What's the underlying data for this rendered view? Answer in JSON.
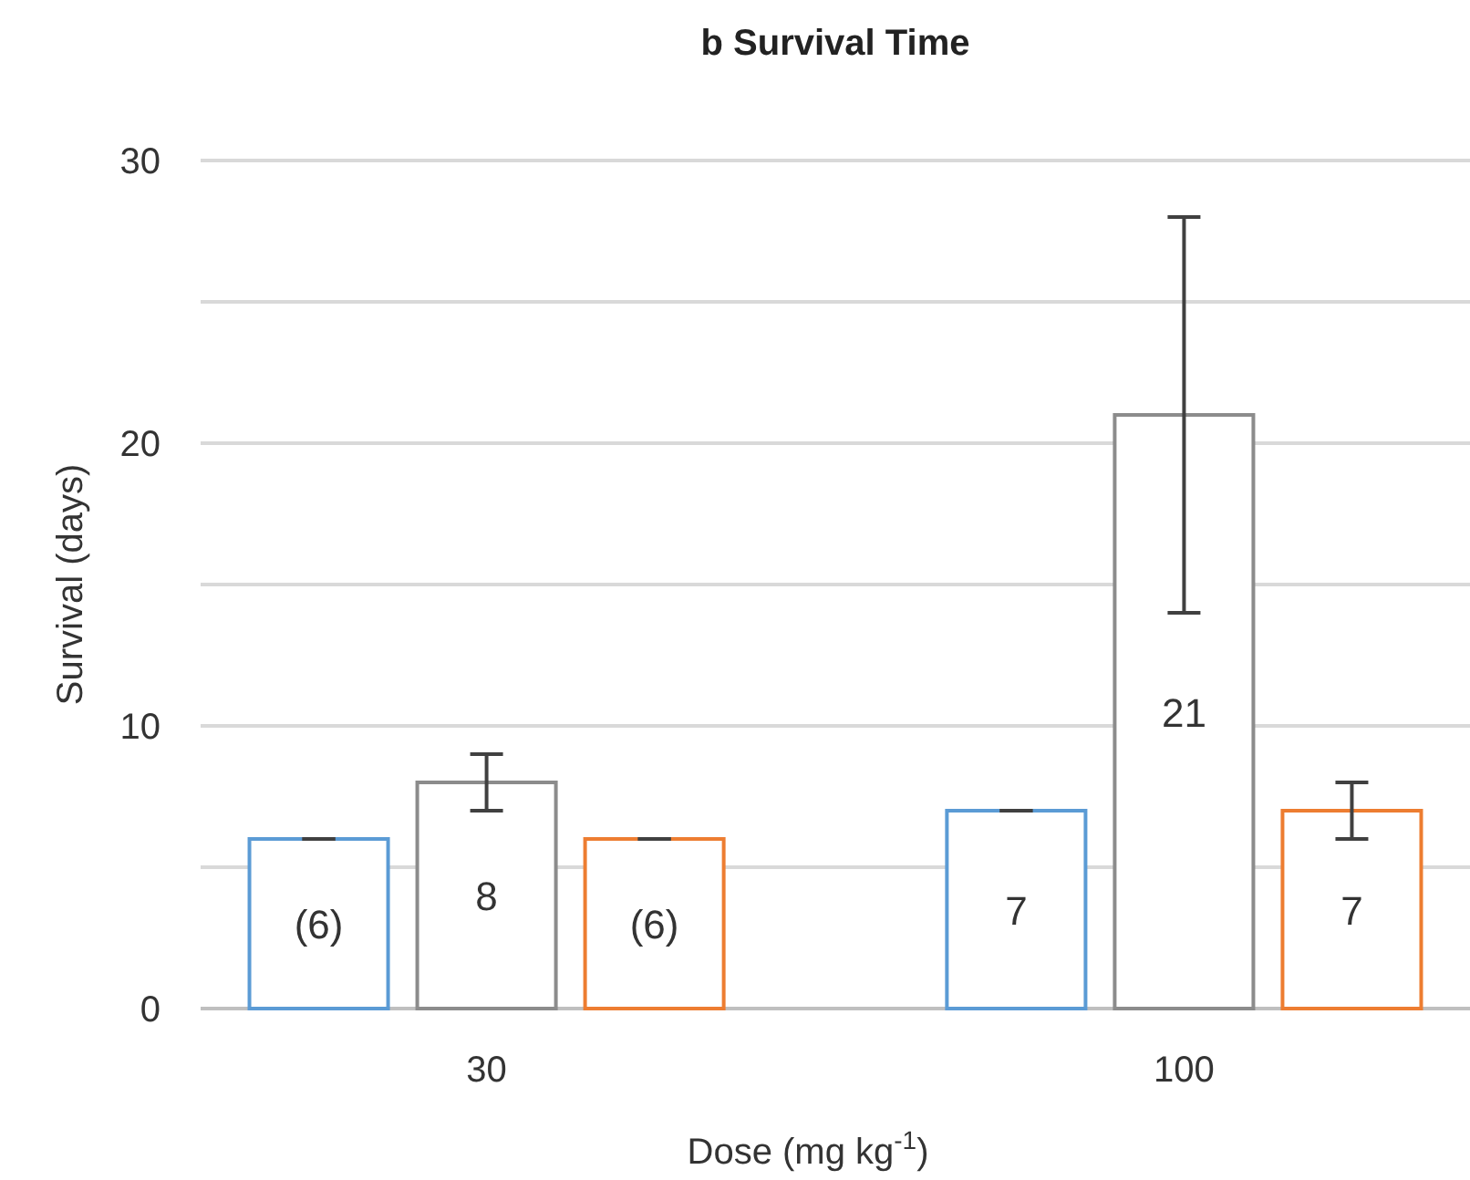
{
  "chart_data": {
    "type": "bar",
    "title": "b Survival Time",
    "xlabel": "Dose (mg kg$^{-1}$)",
    "ylabel": "Survival (days)",
    "categories": [
      "30",
      "100"
    ],
    "series": [
      {
        "color": "#5b9bd5",
        "values": [
          6,
          7
        ],
        "errors": [
          0,
          0
        ],
        "value_labels": [
          "(6)",
          "7"
        ]
      },
      {
        "color": "#8c8c8c",
        "values": [
          8,
          21
        ],
        "errors": [
          1,
          7
        ],
        "value_labels": [
          "8",
          "21"
        ]
      },
      {
        "color": "#ed7d31",
        "values": [
          6,
          7
        ],
        "errors": [
          0,
          1
        ],
        "value_labels": [
          "(6)",
          "7"
        ]
      }
    ],
    "ylim": [
      0,
      30
    ],
    "yticks": [
      0,
      {
        "value": 5,
        "label": null
      },
      10,
      {
        "value": 15,
        "label": null
      },
      20,
      {
        "value": 25,
        "label": null
      },
      30
    ],
    "grid": "y"
  }
}
